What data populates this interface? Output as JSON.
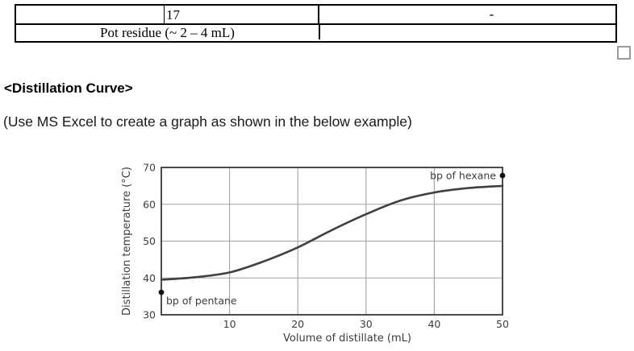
{
  "document": {
    "table": {
      "row1": {
        "col1": "",
        "col2": "17",
        "col3": "-"
      },
      "row2": {
        "col1": "Pot residue (~ 2 – 4 mL)",
        "col2": ""
      }
    },
    "heading": "<Distillation Curve>",
    "instruction": "(Use MS Excel to create a graph as shown in the below example)"
  },
  "icons": {
    "table_handle": "empty-square-handle"
  },
  "chart_data": {
    "type": "line",
    "title": "",
    "xlabel": "Volume of distillate (mL)",
    "ylabel": "Distillation temperature (°C)",
    "xlim": [
      0,
      50
    ],
    "ylim": [
      30,
      70
    ],
    "xticks": [
      10,
      20,
      30,
      40,
      50
    ],
    "yticks": [
      30,
      40,
      50,
      60,
      70
    ],
    "grid": true,
    "legend": "none",
    "series": [
      {
        "name": "distillation-curve",
        "x": [
          0,
          5,
          10,
          15,
          20,
          25,
          30,
          35,
          40,
          45,
          50
        ],
        "y": [
          39.5,
          40.2,
          41.5,
          44.5,
          48.3,
          53.0,
          57.3,
          61.0,
          63.2,
          64.4,
          65.0
        ]
      }
    ],
    "annotations": [
      {
        "label": "bp of pentane",
        "x": 0,
        "y": 36.1,
        "side": "right-below"
      },
      {
        "label": "bp of hexane",
        "x": 50,
        "y": 67.8,
        "side": "left"
      }
    ],
    "colors": {
      "curve": "#404040",
      "grid": "#a3a3a3",
      "frame": "#2e2e2e",
      "text": "#3e3c38",
      "point": "#111111"
    }
  }
}
